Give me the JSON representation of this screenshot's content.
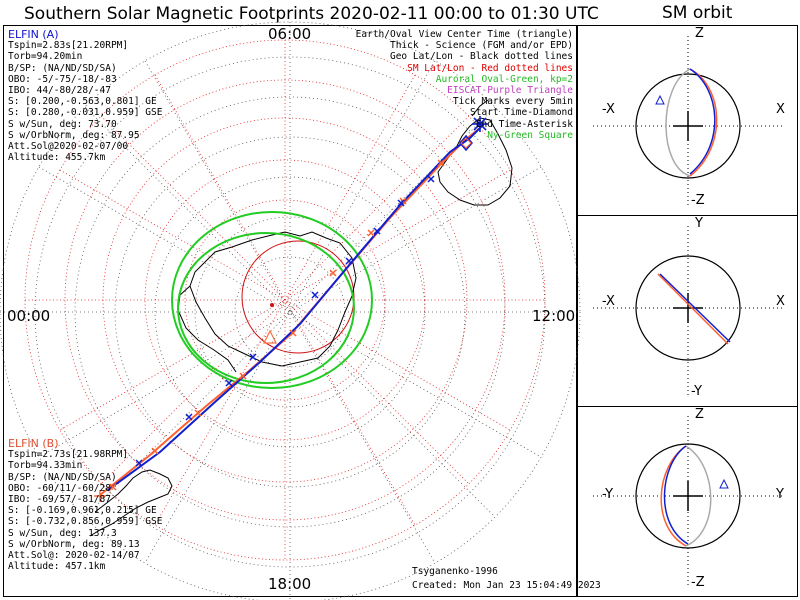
{
  "title": "Southern Solar Magnetic Footprints 2020-02-11 00:00 to 01:30 UTC",
  "orbit_title": "SM orbit",
  "map": {
    "time_labels": {
      "top": "06:00",
      "left": "00:00",
      "right": "12:00",
      "bottom": "18:00"
    }
  },
  "probe_a": {
    "name": "ELFIN (A)",
    "color": "#1010d0",
    "lines": [
      "Tspin=2.83s[21.20RPM]",
      "Torb=94.20min",
      "B/SP: (NA/ND/SD/SA)",
      "OBO: -5/-75/-18/-83",
      "IBO: 44/-80/28/-47",
      "S: [0.200,-0.563,0.801] GE",
      "S: [0.280,-0.031,0.959] GSE",
      "S w/Sun, deg: 73.70",
      "S w/OrbNorm, deg: 87.95",
      "Att.Sol@2020-02-07/00",
      "Altitude: 455.7km"
    ]
  },
  "probe_b": {
    "name": "ELFIN (B)",
    "color": "#e05030",
    "lines": [
      "Tspin=2.73s[21.98RPM]",
      "Torb=94.33min",
      "B/SP: (NA/ND/SD/SA)",
      "OBO: -60/11/-60/28",
      "IBO: -69/57/-81/87",
      "S: [-0.169,0.961,0.215] GE",
      "S: [-0.732,0.856,0.959] GSE",
      "S w/Sun, deg: 137.3",
      "S w/OrbNorm, deg: 89.13",
      "Att.Sol@: 2020-02-14/07",
      "Altitude: 457.1km"
    ]
  },
  "legend": [
    {
      "text": "Earth/Oval View Center Time (triangle)",
      "color": "#000000"
    },
    {
      "text": "Thick - Science (FGM and/or EPD)",
      "color": "#000000"
    },
    {
      "text": "Geo Lat/Lon - Black dotted lines",
      "color": "#000000"
    },
    {
      "text": "SM Lat/Lon - Red dotted lines",
      "color": "#e00000"
    },
    {
      "text": "Auroral Oval-Green, kp=2",
      "color": "#22bb22"
    },
    {
      "text": "EISCAT-Purple Triangle",
      "color": "#c040c0"
    },
    {
      "text": "Tick Marks every 5min",
      "color": "#000000"
    },
    {
      "text": "Start Time-Diamond",
      "color": "#000000"
    },
    {
      "text": "End Time-Asterisk",
      "color": "#000000"
    },
    {
      "text": "Ny-Green Square",
      "color": "#22bb22"
    }
  ],
  "footer": {
    "credit": "Tsyganenko-1996",
    "created": "Created: Mon Jan 23 15:04:49 2023"
  },
  "orbit_panels": [
    {
      "top": "Z",
      "bottom": "-Z",
      "left": "-X",
      "right": "X"
    },
    {
      "top": "Y",
      "bottom": "-Y",
      "left": "-X",
      "right": "X"
    },
    {
      "top": "Z",
      "bottom": "-Z",
      "left": "-Y",
      "right": "Y"
    }
  ]
}
